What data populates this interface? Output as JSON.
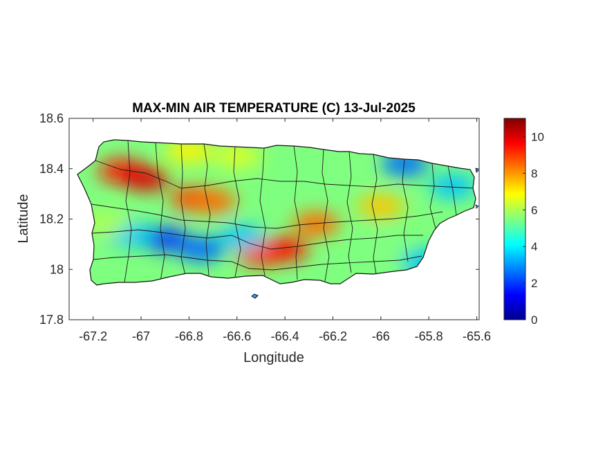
{
  "figure": {
    "title": "MAX-MIN AIR TEMPERATURE (C) 13-Jul-2025",
    "xlabel": "Longitude",
    "ylabel": "Latitude"
  },
  "map": {
    "region": "Puerto Rico",
    "xlim": [
      -67.3,
      -65.59
    ],
    "ylim": [
      17.8,
      18.6
    ],
    "xticks": [
      -67.2,
      -67,
      -66.8,
      -66.6,
      -66.4,
      -66.2,
      -66,
      -65.8,
      -65.6
    ],
    "xtick_labels": [
      "-67.2",
      "-67",
      "-66.8",
      "-66.6",
      "-66.4",
      "-66.2",
      "-66",
      "-65.8",
      "-65.6"
    ],
    "yticks": [
      17.8,
      18,
      18.2,
      18.4,
      18.6
    ],
    "ytick_labels": [
      "17.8",
      "18",
      "18.2",
      "18.4",
      "18.6"
    ],
    "colormap": "jet",
    "outline_color": "#000000"
  },
  "colorbar": {
    "range": [
      0,
      11
    ],
    "ticks": [
      0,
      2,
      4,
      6,
      8,
      10
    ],
    "tick_labels": [
      "0",
      "2",
      "4",
      "6",
      "8",
      "10"
    ],
    "colors": [
      "#00008f",
      "#0000ff",
      "#0080ff",
      "#00ffff",
      "#80ff80",
      "#ffff00",
      "#ff8000",
      "#ff0000",
      "#800000"
    ]
  },
  "chart_data": {
    "type": "heatmap",
    "title": "MAX-MIN AIR TEMPERATURE (C) 13-Jul-2025",
    "xlabel": "Longitude",
    "ylabel": "Latitude",
    "xlim": [
      -67.3,
      -65.59
    ],
    "ylim": [
      17.8,
      18.6
    ],
    "value_range": [
      0,
      11
    ],
    "value_regions": [
      {
        "lon": -67.08,
        "lat": 18.39,
        "value": 9.5
      },
      {
        "lon": -66.98,
        "lat": 18.36,
        "value": 10.0
      },
      {
        "lon": -66.78,
        "lat": 18.28,
        "value": 9.0
      },
      {
        "lon": -66.7,
        "lat": 18.27,
        "value": 8.5
      },
      {
        "lon": -66.5,
        "lat": 18.06,
        "value": 9.0
      },
      {
        "lon": -66.4,
        "lat": 18.08,
        "value": 9.5
      },
      {
        "lon": -66.27,
        "lat": 18.18,
        "value": 8.5
      },
      {
        "lon": -66.0,
        "lat": 18.25,
        "value": 7.5
      },
      {
        "lon": -66.9,
        "lat": 18.12,
        "value": 2.0
      },
      {
        "lon": -66.75,
        "lat": 18.08,
        "value": 2.5
      },
      {
        "lon": -67.05,
        "lat": 18.14,
        "value": 3.5
      },
      {
        "lon": -66.58,
        "lat": 18.13,
        "value": 3.5
      },
      {
        "lon": -65.9,
        "lat": 18.42,
        "value": 2.5
      },
      {
        "lon": -65.7,
        "lat": 18.33,
        "value": 3.5
      },
      {
        "lon": -65.82,
        "lat": 18.03,
        "value": 3.5
      },
      {
        "lon": -66.8,
        "lat": 18.47,
        "value": 7.0
      },
      {
        "lon": -66.6,
        "lat": 18.45,
        "value": 6.5
      },
      {
        "lon": -66.15,
        "lat": 18.4,
        "value": 5.5
      },
      {
        "lon": -66.0,
        "lat": 18.1,
        "value": 5.5
      },
      {
        "lon": -67.15,
        "lat": 18.18,
        "value": 6.0
      }
    ]
  }
}
